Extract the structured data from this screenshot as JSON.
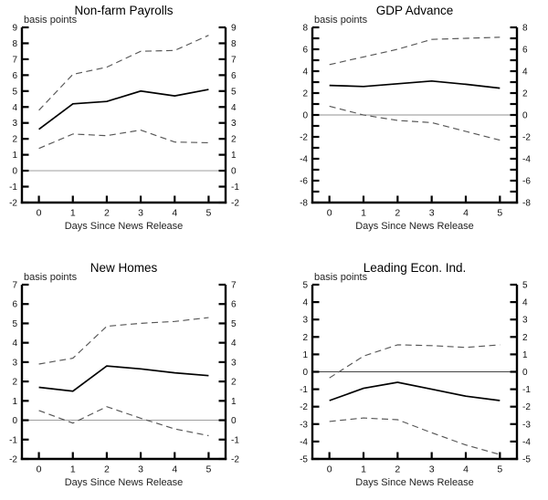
{
  "page": {
    "background": "#ffffff",
    "text_color": "#111111",
    "axis_color": "#000000"
  },
  "chart_data": [
    {
      "type": "line",
      "title": "Non-farm Payrolls",
      "ylabel": "basis points",
      "xlabel": "Days Since News Release",
      "x": [
        0,
        1,
        2,
        3,
        4,
        5
      ],
      "xticks": [
        0,
        1,
        2,
        3,
        4,
        5
      ],
      "xlim": [
        -0.5,
        5.5
      ],
      "ylim": [
        -2,
        9
      ],
      "ytick_step": 1,
      "ylabel_step": 1,
      "grid": false,
      "legend": "none",
      "dual_axis_labels": true,
      "zero_line": true,
      "zero_line_color": "#909090",
      "series": [
        {
          "name": "response",
          "style": "solid",
          "color": "#000000",
          "values": [
            2.6,
            4.2,
            4.35,
            5.0,
            4.7,
            5.1
          ]
        },
        {
          "name": "upper-band",
          "style": "dashed",
          "color": "#555555",
          "values": [
            3.8,
            6.05,
            6.5,
            7.5,
            7.55,
            8.5
          ]
        },
        {
          "name": "lower-band",
          "style": "dashed",
          "color": "#555555",
          "values": [
            1.4,
            2.3,
            2.2,
            2.55,
            1.8,
            1.75
          ]
        }
      ]
    },
    {
      "type": "line",
      "title": "GDP Advance",
      "ylabel": "basis points",
      "xlabel": "Days Since News Release",
      "x": [
        0,
        1,
        2,
        3,
        4,
        5
      ],
      "xticks": [
        0,
        1,
        2,
        3,
        4,
        5
      ],
      "xlim": [
        -0.5,
        5.5
      ],
      "ylim": [
        -8,
        8
      ],
      "ytick_step": 1,
      "ylabel_step": 2,
      "grid": false,
      "legend": "none",
      "dual_axis_labels": true,
      "zero_line": true,
      "zero_line_color": "#909090",
      "series": [
        {
          "name": "response",
          "style": "solid",
          "color": "#000000",
          "values": [
            2.7,
            2.6,
            2.85,
            3.1,
            2.8,
            2.45
          ]
        },
        {
          "name": "upper-band",
          "style": "dashed",
          "color": "#555555",
          "values": [
            4.6,
            5.3,
            6.0,
            6.9,
            7.0,
            7.1
          ]
        },
        {
          "name": "lower-band",
          "style": "dashed",
          "color": "#555555",
          "values": [
            0.8,
            0.0,
            -0.5,
            -0.7,
            -1.5,
            -2.3
          ]
        }
      ]
    },
    {
      "type": "line",
      "title": "New Homes",
      "ylabel": "basis points",
      "xlabel": "Days Since News Release",
      "x": [
        0,
        1,
        2,
        3,
        4,
        5
      ],
      "xticks": [
        0,
        1,
        2,
        3,
        4,
        5
      ],
      "xlim": [
        -0.5,
        5.5
      ],
      "ylim": [
        -2,
        7
      ],
      "ytick_step": 1,
      "ylabel_step": 1,
      "grid": false,
      "legend": "none",
      "dual_axis_labels": true,
      "zero_line": true,
      "zero_line_color": "#909090",
      "series": [
        {
          "name": "response",
          "style": "solid",
          "color": "#000000",
          "values": [
            1.7,
            1.5,
            2.8,
            2.65,
            2.45,
            2.3
          ]
        },
        {
          "name": "upper-band",
          "style": "dashed",
          "color": "#555555",
          "values": [
            2.9,
            3.2,
            4.85,
            5.0,
            5.1,
            5.3
          ]
        },
        {
          "name": "lower-band",
          "style": "dashed",
          "color": "#555555",
          "values": [
            0.5,
            -0.15,
            0.7,
            0.1,
            -0.45,
            -0.8
          ]
        }
      ]
    },
    {
      "type": "line",
      "title": "Leading Econ. Ind.",
      "ylabel": "basis points",
      "xlabel": "Days Since News Release",
      "x": [
        0,
        1,
        2,
        3,
        4,
        5
      ],
      "xticks": [
        0,
        1,
        2,
        3,
        4,
        5
      ],
      "xlim": [
        -0.5,
        5.5
      ],
      "ylim": [
        -5,
        5
      ],
      "ytick_step": 1,
      "ylabel_step": 1,
      "grid": false,
      "legend": "none",
      "dual_axis_labels": true,
      "zero_line": true,
      "zero_line_color": "#444444",
      "series": [
        {
          "name": "response",
          "style": "solid",
          "color": "#000000",
          "values": [
            -1.65,
            -0.95,
            -0.6,
            -1.0,
            -1.4,
            -1.65
          ]
        },
        {
          "name": "upper-band",
          "style": "dashed",
          "color": "#555555",
          "values": [
            -0.35,
            0.9,
            1.55,
            1.5,
            1.4,
            1.55
          ]
        },
        {
          "name": "lower-band",
          "style": "dashed",
          "color": "#555555",
          "values": [
            -2.85,
            -2.65,
            -2.75,
            -3.5,
            -4.2,
            -4.75
          ]
        }
      ]
    }
  ]
}
